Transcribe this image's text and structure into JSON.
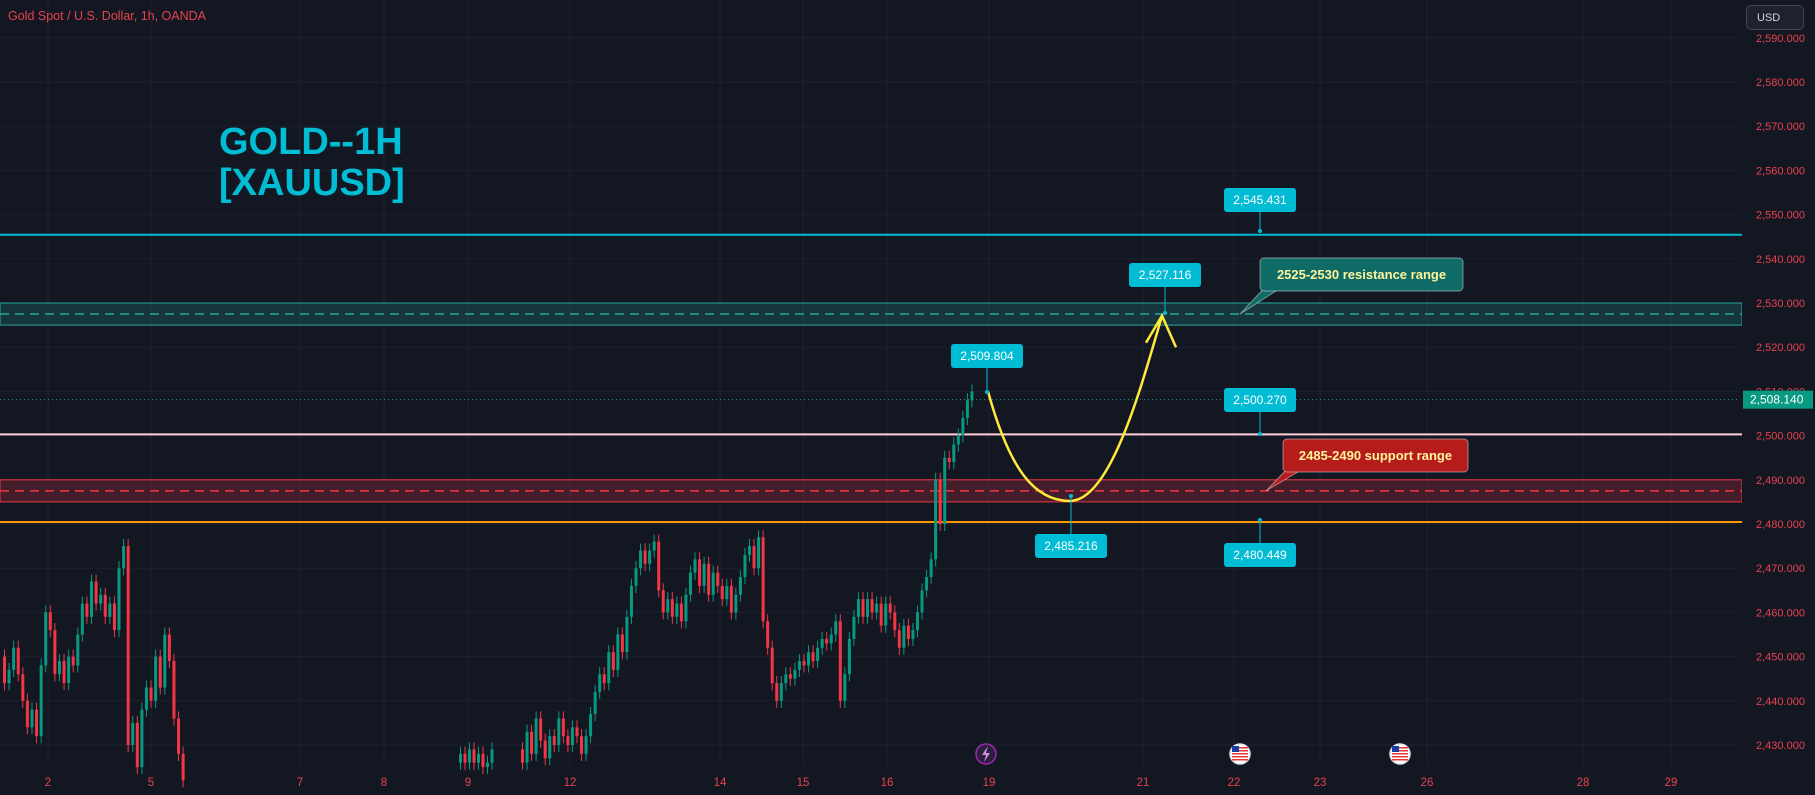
{
  "header": {
    "symbol_line": "Gold Spot / U.S. Dollar, 1h, OANDA",
    "currency_button": "USD"
  },
  "title": {
    "line1": "GOLD--1H",
    "line2": "[XAUUSD]"
  },
  "colors": {
    "background": "#131722",
    "bull": "#089981",
    "bear": "#f23645",
    "cyan": "#00bcd4",
    "label_text": "#ffffff",
    "resistance_zone": "#26a69a",
    "support_zone": "#f23645",
    "level_white": "#ffcdd2",
    "level_orange": "#ff9800",
    "projection": "#ffeb3b"
  },
  "chart_data": {
    "type": "candlestick",
    "instrument": "XAUUSD",
    "timeframe": "1h",
    "ylim": [
      2424,
      2599
    ],
    "y_ticks": [
      "2,430.000",
      "2,440.000",
      "2,450.000",
      "2,460.000",
      "2,470.000",
      "2,480.000",
      "2,490.000",
      "2,500.000",
      "2,510.000",
      "2,520.000",
      "2,530.000",
      "2,540.000",
      "2,550.000",
      "2,560.000",
      "2,570.000",
      "2,580.000",
      "2,590.000"
    ],
    "x_ticks": [
      "2",
      "5",
      "7",
      "8",
      "9",
      "12",
      "14",
      "15",
      "16",
      "19",
      "21",
      "22",
      "23",
      "26",
      "28",
      "29"
    ],
    "current_price": "2,508.140",
    "levels": [
      {
        "name": "upper-cyan",
        "value": 2545.431,
        "label": "2,545.431",
        "style": "solid",
        "color": "#00bcd4"
      },
      {
        "name": "resistance-mid",
        "value": 2527.5,
        "style": "dashed",
        "color": "#26a69a"
      },
      {
        "name": "white-level",
        "value": 2500.27,
        "label": "2,500.270",
        "style": "solid",
        "color": "#ffcdd2"
      },
      {
        "name": "support-mid",
        "value": 2487.5,
        "style": "dashed",
        "color": "#f23645"
      },
      {
        "name": "orange-level",
        "value": 2480.449,
        "label": "2,480.449",
        "style": "solid",
        "color": "#ff9800"
      }
    ],
    "zones": [
      {
        "name": "resistance",
        "from": 2525,
        "to": 2530,
        "text": "2525-2530 resistance range"
      },
      {
        "name": "support",
        "from": 2485,
        "to": 2490,
        "text": "2485-2490 support range"
      }
    ],
    "price_labels": [
      "2,509.804",
      "2,527.116",
      "2,485.216"
    ],
    "projection": {
      "start": 2510,
      "low": 2485.216,
      "target": 2527.116
    },
    "event_icons": [
      "lightning-icon",
      "us-flag-icon",
      "us-flag-icon"
    ],
    "candles": [
      [
        2450,
        2444
      ],
      [
        2444,
        2447
      ],
      [
        2447,
        2452
      ],
      [
        2452,
        2446
      ],
      [
        2446,
        2440
      ],
      [
        2440,
        2434
      ],
      [
        2434,
        2438
      ],
      [
        2438,
        2432
      ],
      [
        2432,
        2448
      ],
      [
        2448,
        2460
      ],
      [
        2460,
        2456
      ],
      [
        2456,
        2446
      ],
      [
        2446,
        2449
      ],
      [
        2449,
        2444
      ],
      [
        2444,
        2450
      ],
      [
        2450,
        2448
      ],
      [
        2448,
        2455
      ],
      [
        2455,
        2462
      ],
      [
        2462,
        2459
      ],
      [
        2459,
        2467
      ],
      [
        2467,
        2462
      ],
      [
        2462,
        2464
      ],
      [
        2464,
        2459
      ],
      [
        2459,
        2462
      ],
      [
        2462,
        2456
      ],
      [
        2456,
        2470
      ],
      [
        2470,
        2475
      ],
      [
        2475,
        2430
      ],
      [
        2430,
        2435
      ],
      [
        2435,
        2425
      ],
      [
        2425,
        2438
      ],
      [
        2438,
        2443
      ],
      [
        2443,
        2440
      ],
      [
        2440,
        2450
      ],
      [
        2450,
        2443
      ],
      [
        2443,
        2455
      ],
      [
        2455,
        2449
      ],
      [
        2449,
        2436
      ],
      [
        2436,
        2428
      ],
      [
        2428,
        2422
      ],
      [
        2426,
        2428
      ],
      [
        2428,
        2426
      ],
      [
        2426,
        2429
      ],
      [
        2429,
        2426
      ],
      [
        2426,
        2428
      ],
      [
        2428,
        2425
      ],
      [
        2425,
        2426
      ],
      [
        2426,
        2429
      ],
      [
        2429,
        2426
      ],
      [
        2426,
        2433
      ],
      [
        2433,
        2428
      ],
      [
        2428,
        2436
      ],
      [
        2436,
        2431
      ],
      [
        2431,
        2427
      ],
      [
        2427,
        2432
      ],
      [
        2432,
        2430
      ],
      [
        2430,
        2436
      ],
      [
        2436,
        2432
      ],
      [
        2432,
        2430
      ],
      [
        2430,
        2434
      ],
      [
        2434,
        2432
      ],
      [
        2432,
        2428
      ],
      [
        2428,
        2432
      ],
      [
        2432,
        2437
      ],
      [
        2437,
        2442
      ],
      [
        2442,
        2446
      ],
      [
        2446,
        2444
      ],
      [
        2444,
        2451
      ],
      [
        2451,
        2447
      ],
      [
        2447,
        2455
      ],
      [
        2455,
        2451
      ],
      [
        2451,
        2459
      ],
      [
        2459,
        2466
      ],
      [
        2466,
        2470
      ],
      [
        2470,
        2474
      ],
      [
        2474,
        2471
      ],
      [
        2471,
        2474
      ],
      [
        2474,
        2476
      ],
      [
        2476,
        2465
      ],
      [
        2465,
        2460
      ],
      [
        2460,
        2463
      ],
      [
        2463,
        2459
      ],
      [
        2459,
        2462
      ],
      [
        2462,
        2458
      ],
      [
        2458,
        2464
      ],
      [
        2464,
        2469
      ],
      [
        2469,
        2472
      ],
      [
        2472,
        2466
      ],
      [
        2466,
        2471
      ],
      [
        2471,
        2464
      ],
      [
        2464,
        2469
      ],
      [
        2469,
        2466
      ],
      [
        2466,
        2463
      ],
      [
        2463,
        2466
      ],
      [
        2466,
        2460
      ],
      [
        2460,
        2464
      ],
      [
        2464,
        2468
      ],
      [
        2468,
        2473
      ],
      [
        2473,
        2475
      ],
      [
        2475,
        2470
      ],
      [
        2470,
        2477
      ],
      [
        2477,
        2458
      ],
      [
        2458,
        2452
      ],
      [
        2452,
        2444
      ],
      [
        2444,
        2440
      ],
      [
        2440,
        2444
      ],
      [
        2444,
        2446
      ],
      [
        2446,
        2445
      ],
      [
        2445,
        2447
      ],
      [
        2447,
        2449
      ],
      [
        2449,
        2448
      ],
      [
        2448,
        2451
      ],
      [
        2451,
        2449
      ],
      [
        2449,
        2452
      ],
      [
        2452,
        2454
      ],
      [
        2454,
        2453
      ],
      [
        2453,
        2455
      ],
      [
        2455,
        2458
      ],
      [
        2458,
        2440
      ],
      [
        2440,
        2446
      ],
      [
        2446,
        2454
      ],
      [
        2454,
        2459
      ],
      [
        2459,
        2463
      ],
      [
        2463,
        2459
      ],
      [
        2459,
        2463
      ],
      [
        2463,
        2460
      ],
      [
        2460,
        2462
      ],
      [
        2462,
        2457
      ],
      [
        2457,
        2462
      ],
      [
        2462,
        2460
      ],
      [
        2460,
        2456
      ],
      [
        2456,
        2452
      ],
      [
        2452,
        2457
      ],
      [
        2457,
        2454
      ],
      [
        2454,
        2456
      ],
      [
        2456,
        2460
      ],
      [
        2460,
        2465
      ],
      [
        2465,
        2468
      ],
      [
        2468,
        2472
      ],
      [
        2472,
        2490
      ],
      [
        2490,
        2480
      ],
      [
        2480,
        2495
      ],
      [
        2495,
        2494
      ],
      [
        2494,
        2498
      ],
      [
        2498,
        2500
      ],
      [
        2500,
        2504
      ],
      [
        2504,
        2508
      ],
      [
        2508,
        2510
      ]
    ]
  }
}
